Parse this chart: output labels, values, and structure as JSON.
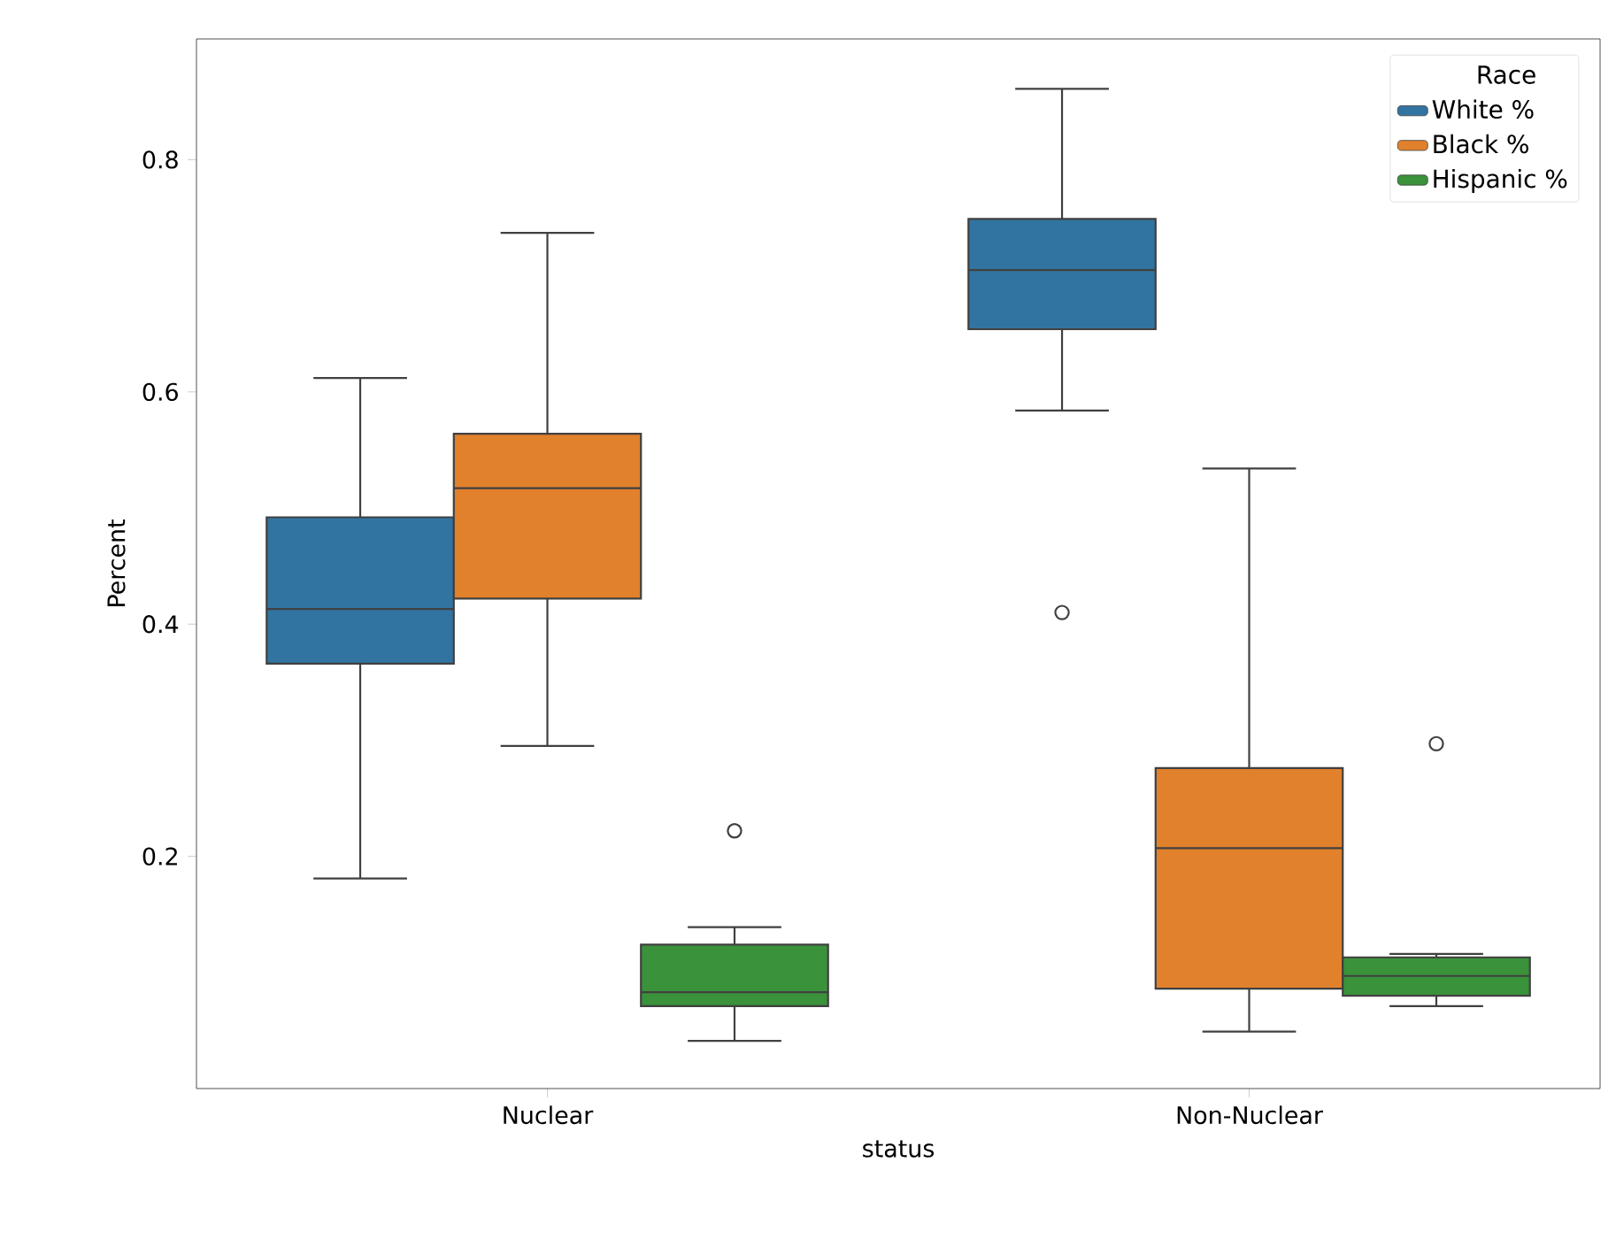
{
  "chart_data": {
    "type": "box",
    "xlabel": "status",
    "ylabel": "Percent",
    "legend_title": "Race",
    "legend": "top right",
    "categories": [
      "Nuclear",
      "Non-Nuclear"
    ],
    "ylim": [
      0.0,
      0.904
    ],
    "yticks": [
      0.2,
      0.4,
      0.6,
      0.8
    ],
    "series": [
      {
        "name": "White %",
        "color": "#3274a1",
        "boxes": [
          {
            "low": 0.181,
            "q1": 0.366,
            "median": 0.413,
            "q3": 0.492,
            "high": 0.612
          },
          {
            "low": 0.584,
            "q1": 0.654,
            "median": 0.705,
            "q3": 0.749,
            "high": 0.861,
            "outliers": [
              0.41
            ]
          }
        ]
      },
      {
        "name": "Black %",
        "color": "#e1812c",
        "boxes": [
          {
            "low": 0.295,
            "q1": 0.422,
            "median": 0.517,
            "q3": 0.564,
            "high": 0.737
          },
          {
            "low": 0.049,
            "q1": 0.086,
            "median": 0.207,
            "q3": 0.276,
            "high": 0.534
          }
        ]
      },
      {
        "name": "Hispanic %",
        "color": "#3a923a",
        "boxes": [
          {
            "low": 0.041,
            "q1": 0.071,
            "median": 0.083,
            "q3": 0.124,
            "high": 0.139,
            "outliers": [
              0.222
            ]
          },
          {
            "low": 0.071,
            "q1": 0.08,
            "median": 0.097,
            "q3": 0.113,
            "high": 0.116,
            "outliers": [
              0.297
            ]
          }
        ]
      }
    ]
  }
}
